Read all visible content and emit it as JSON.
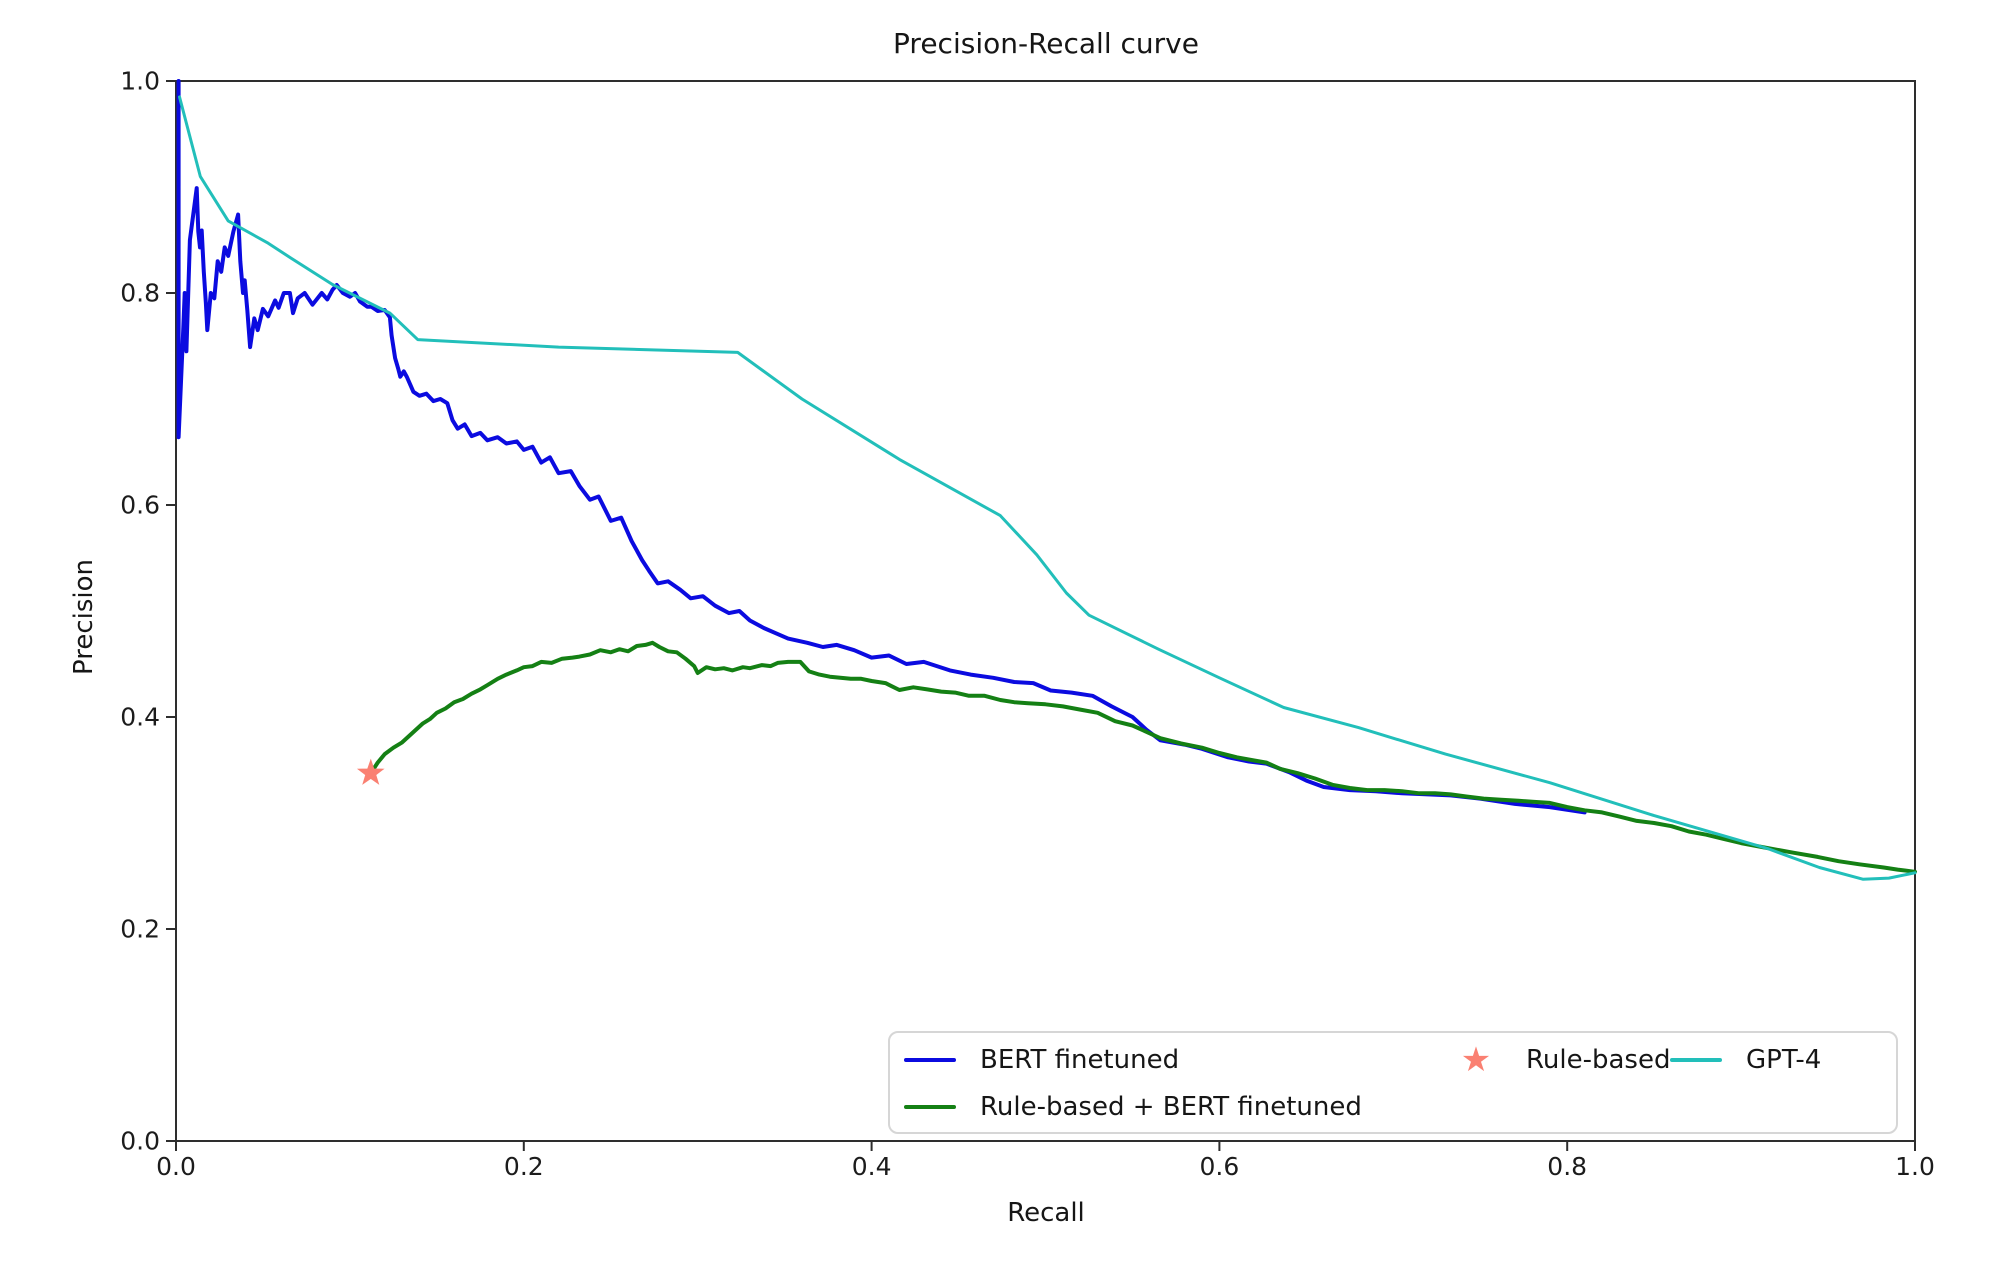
{
  "chart_data": {
    "type": "line",
    "title": "Precision-Recall curve",
    "xlabel": "Recall",
    "ylabel": "Precision",
    "xlim": [
      0.0,
      1.0
    ],
    "ylim": [
      0.0,
      1.0
    ],
    "x_ticks": [
      0.0,
      0.2,
      0.4,
      0.6,
      0.8,
      1.0
    ],
    "y_ticks": [
      0.0,
      0.2,
      0.4,
      0.6,
      0.8,
      1.0
    ],
    "grid": false,
    "legend_position": "lower right",
    "colors": {
      "bert": "#0b0be0",
      "rule_bert": "#148014",
      "rule": "#fa8072",
      "gpt4": "#22bfba",
      "spine": "#2e2e2e",
      "text": "#161616"
    },
    "series": [
      {
        "id": "bert-finetuned",
        "name": "BERT finetuned",
        "kind": "line",
        "color": "#0b0be0",
        "points": [
          [
            0.0015,
            1.0
          ],
          [
            0.0015,
            0.664
          ],
          [
            0.004,
            0.76
          ],
          [
            0.005,
            0.8
          ],
          [
            0.006,
            0.745
          ],
          [
            0.008,
            0.85
          ],
          [
            0.0119,
            0.899
          ],
          [
            0.0128,
            0.858
          ],
          [
            0.0138,
            0.843
          ],
          [
            0.0148,
            0.859
          ],
          [
            0.016,
            0.82
          ],
          [
            0.0172,
            0.79
          ],
          [
            0.018,
            0.765
          ],
          [
            0.02,
            0.8
          ],
          [
            0.022,
            0.795
          ],
          [
            0.024,
            0.83
          ],
          [
            0.026,
            0.82
          ],
          [
            0.028,
            0.843
          ],
          [
            0.03,
            0.835
          ],
          [
            0.033,
            0.858
          ],
          [
            0.0357,
            0.874
          ],
          [
            0.037,
            0.83
          ],
          [
            0.0385,
            0.8
          ],
          [
            0.0395,
            0.812
          ],
          [
            0.041,
            0.784
          ],
          [
            0.0426,
            0.749
          ],
          [
            0.045,
            0.776
          ],
          [
            0.047,
            0.765
          ],
          [
            0.05,
            0.785
          ],
          [
            0.053,
            0.778
          ],
          [
            0.057,
            0.793
          ],
          [
            0.059,
            0.786
          ],
          [
            0.062,
            0.8
          ],
          [
            0.0655,
            0.8
          ],
          [
            0.0673,
            0.781
          ],
          [
            0.07,
            0.795
          ],
          [
            0.074,
            0.8
          ],
          [
            0.0785,
            0.789
          ],
          [
            0.0838,
            0.8
          ],
          [
            0.087,
            0.794
          ],
          [
            0.09,
            0.803
          ],
          [
            0.0924,
            0.8075
          ],
          [
            0.096,
            0.8
          ],
          [
            0.1,
            0.7965
          ],
          [
            0.103,
            0.8
          ],
          [
            0.1058,
            0.792
          ],
          [
            0.11,
            0.787
          ],
          [
            0.1125,
            0.787
          ],
          [
            0.116,
            0.783
          ],
          [
            0.12,
            0.784
          ],
          [
            0.123,
            0.777
          ],
          [
            0.124,
            0.76
          ],
          [
            0.126,
            0.7386
          ],
          [
            0.1277,
            0.729
          ],
          [
            0.129,
            0.721
          ],
          [
            0.131,
            0.726
          ],
          [
            0.1328,
            0.7208
          ],
          [
            0.1365,
            0.7068
          ],
          [
            0.14,
            0.703
          ],
          [
            0.144,
            0.705
          ],
          [
            0.148,
            0.698
          ],
          [
            0.152,
            0.7
          ],
          [
            0.156,
            0.696
          ],
          [
            0.159,
            0.68
          ],
          [
            0.162,
            0.672
          ],
          [
            0.166,
            0.676
          ],
          [
            0.17,
            0.665
          ],
          [
            0.175,
            0.668
          ],
          [
            0.179,
            0.661
          ],
          [
            0.185,
            0.664
          ],
          [
            0.19,
            0.658
          ],
          [
            0.196,
            0.66
          ],
          [
            0.2,
            0.652
          ],
          [
            0.205,
            0.655
          ],
          [
            0.21,
            0.64
          ],
          [
            0.215,
            0.645
          ],
          [
            0.22,
            0.63
          ],
          [
            0.227,
            0.632
          ],
          [
            0.232,
            0.618
          ],
          [
            0.238,
            0.605
          ],
          [
            0.243,
            0.608
          ],
          [
            0.25,
            0.585
          ],
          [
            0.256,
            0.588
          ],
          [
            0.262,
            0.566
          ],
          [
            0.268,
            0.548
          ],
          [
            0.272,
            0.538
          ],
          [
            0.277,
            0.526
          ],
          [
            0.283,
            0.528
          ],
          [
            0.29,
            0.52
          ],
          [
            0.296,
            0.512
          ],
          [
            0.303,
            0.514
          ],
          [
            0.31,
            0.505
          ],
          [
            0.318,
            0.498
          ],
          [
            0.324,
            0.5
          ],
          [
            0.33,
            0.491
          ],
          [
            0.338,
            0.484
          ],
          [
            0.345,
            0.479
          ],
          [
            0.352,
            0.474
          ],
          [
            0.363,
            0.47
          ],
          [
            0.372,
            0.466
          ],
          [
            0.38,
            0.468
          ],
          [
            0.39,
            0.463
          ],
          [
            0.4,
            0.456
          ],
          [
            0.41,
            0.458
          ],
          [
            0.42,
            0.45
          ],
          [
            0.43,
            0.452
          ],
          [
            0.445,
            0.444
          ],
          [
            0.457,
            0.44
          ],
          [
            0.47,
            0.437
          ],
          [
            0.482,
            0.433
          ],
          [
            0.493,
            0.432
          ],
          [
            0.503,
            0.425
          ],
          [
            0.515,
            0.423
          ],
          [
            0.527,
            0.42
          ],
          [
            0.538,
            0.41
          ],
          [
            0.55,
            0.4
          ],
          [
            0.558,
            0.388
          ],
          [
            0.566,
            0.378
          ],
          [
            0.58,
            0.374
          ],
          [
            0.59,
            0.37
          ],
          [
            0.605,
            0.362
          ],
          [
            0.617,
            0.358
          ],
          [
            0.627,
            0.356
          ],
          [
            0.64,
            0.348
          ],
          [
            0.65,
            0.34
          ],
          [
            0.66,
            0.334
          ],
          [
            0.675,
            0.331
          ],
          [
            0.69,
            0.33
          ],
          [
            0.705,
            0.328
          ],
          [
            0.72,
            0.327
          ],
          [
            0.733,
            0.326
          ],
          [
            0.75,
            0.323
          ],
          [
            0.77,
            0.318
          ],
          [
            0.79,
            0.315
          ],
          [
            0.81,
            0.31
          ]
        ]
      },
      {
        "id": "rule-based-plus-bert-finetuned",
        "name": "Rule-based + BERT finetuned",
        "kind": "line",
        "color": "#148014",
        "points": [
          [
            0.112,
            0.347
          ],
          [
            0.116,
            0.357
          ],
          [
            0.12,
            0.365
          ],
          [
            0.125,
            0.371
          ],
          [
            0.13,
            0.376
          ],
          [
            0.136,
            0.385
          ],
          [
            0.142,
            0.394
          ],
          [
            0.146,
            0.398
          ],
          [
            0.15,
            0.404
          ],
          [
            0.155,
            0.408
          ],
          [
            0.16,
            0.414
          ],
          [
            0.165,
            0.417
          ],
          [
            0.17,
            0.422
          ],
          [
            0.175,
            0.426
          ],
          [
            0.179,
            0.43
          ],
          [
            0.185,
            0.436
          ],
          [
            0.19,
            0.44
          ],
          [
            0.196,
            0.444
          ],
          [
            0.2,
            0.447
          ],
          [
            0.205,
            0.448
          ],
          [
            0.21,
            0.452
          ],
          [
            0.216,
            0.451
          ],
          [
            0.222,
            0.455
          ],
          [
            0.228,
            0.456
          ],
          [
            0.232,
            0.457
          ],
          [
            0.238,
            0.459
          ],
          [
            0.244,
            0.463
          ],
          [
            0.25,
            0.461
          ],
          [
            0.255,
            0.464
          ],
          [
            0.26,
            0.462
          ],
          [
            0.265,
            0.467
          ],
          [
            0.27,
            0.468
          ],
          [
            0.274,
            0.47
          ],
          [
            0.278,
            0.466
          ],
          [
            0.283,
            0.462
          ],
          [
            0.288,
            0.461
          ],
          [
            0.293,
            0.455
          ],
          [
            0.298,
            0.448
          ],
          [
            0.3,
            0.4415
          ],
          [
            0.305,
            0.447
          ],
          [
            0.31,
            0.445
          ],
          [
            0.315,
            0.446
          ],
          [
            0.32,
            0.444
          ],
          [
            0.326,
            0.447
          ],
          [
            0.33,
            0.446
          ],
          [
            0.337,
            0.449
          ],
          [
            0.342,
            0.448
          ],
          [
            0.346,
            0.451
          ],
          [
            0.352,
            0.452
          ],
          [
            0.359,
            0.452
          ],
          [
            0.364,
            0.443
          ],
          [
            0.37,
            0.44
          ],
          [
            0.376,
            0.438
          ],
          [
            0.382,
            0.437
          ],
          [
            0.388,
            0.436
          ],
          [
            0.394,
            0.436
          ],
          [
            0.4,
            0.434
          ],
          [
            0.408,
            0.432
          ],
          [
            0.416,
            0.4255
          ],
          [
            0.424,
            0.428
          ],
          [
            0.432,
            0.426
          ],
          [
            0.44,
            0.424
          ],
          [
            0.448,
            0.423
          ],
          [
            0.456,
            0.42
          ],
          [
            0.465,
            0.42
          ],
          [
            0.474,
            0.416
          ],
          [
            0.482,
            0.414
          ],
          [
            0.49,
            0.413
          ],
          [
            0.5,
            0.412
          ],
          [
            0.51,
            0.41
          ],
          [
            0.52,
            0.407
          ],
          [
            0.53,
            0.404
          ],
          [
            0.54,
            0.396
          ],
          [
            0.55,
            0.392
          ],
          [
            0.558,
            0.386
          ],
          [
            0.566,
            0.38
          ],
          [
            0.578,
            0.375
          ],
          [
            0.59,
            0.371
          ],
          [
            0.6,
            0.366
          ],
          [
            0.61,
            0.362
          ],
          [
            0.62,
            0.359
          ],
          [
            0.627,
            0.357
          ],
          [
            0.635,
            0.351
          ],
          [
            0.645,
            0.347
          ],
          [
            0.655,
            0.342
          ],
          [
            0.665,
            0.336
          ],
          [
            0.675,
            0.333
          ],
          [
            0.685,
            0.331
          ],
          [
            0.695,
            0.331
          ],
          [
            0.705,
            0.33
          ],
          [
            0.715,
            0.328
          ],
          [
            0.724,
            0.328
          ],
          [
            0.733,
            0.327
          ],
          [
            0.742,
            0.325
          ],
          [
            0.752,
            0.323
          ],
          [
            0.762,
            0.322
          ],
          [
            0.772,
            0.321
          ],
          [
            0.78,
            0.32
          ],
          [
            0.79,
            0.319
          ],
          [
            0.8,
            0.315
          ],
          [
            0.81,
            0.312
          ],
          [
            0.82,
            0.31
          ],
          [
            0.83,
            0.306
          ],
          [
            0.84,
            0.302
          ],
          [
            0.85,
            0.3
          ],
          [
            0.86,
            0.297
          ],
          [
            0.87,
            0.292
          ],
          [
            0.88,
            0.289
          ],
          [
            0.89,
            0.285
          ],
          [
            0.9,
            0.281
          ],
          [
            0.915,
            0.2764
          ],
          [
            0.93,
            0.272
          ],
          [
            0.944,
            0.268
          ],
          [
            0.956,
            0.264
          ],
          [
            0.968,
            0.261
          ],
          [
            0.982,
            0.258
          ],
          [
            0.99,
            0.256
          ],
          [
            1.0,
            0.254
          ]
        ]
      },
      {
        "id": "gpt-4",
        "name": "GPT-4",
        "kind": "line",
        "color": "#22bfba",
        "points": [
          [
            0.002,
            0.985
          ],
          [
            0.014,
            0.91
          ],
          [
            0.03,
            0.868
          ],
          [
            0.053,
            0.847
          ],
          [
            0.066,
            0.833
          ],
          [
            0.09,
            0.808
          ],
          [
            0.123,
            0.781
          ],
          [
            0.139,
            0.756
          ],
          [
            0.22,
            0.749
          ],
          [
            0.323,
            0.744
          ],
          [
            0.36,
            0.7
          ],
          [
            0.416,
            0.643
          ],
          [
            0.474,
            0.59
          ],
          [
            0.495,
            0.553
          ],
          [
            0.512,
            0.517
          ],
          [
            0.525,
            0.496
          ],
          [
            0.565,
            0.464
          ],
          [
            0.6,
            0.437
          ],
          [
            0.637,
            0.409
          ],
          [
            0.68,
            0.39
          ],
          [
            0.73,
            0.365
          ],
          [
            0.79,
            0.338
          ],
          [
            0.85,
            0.307
          ],
          [
            0.915,
            0.276
          ],
          [
            0.945,
            0.258
          ],
          [
            0.97,
            0.247
          ],
          [
            0.985,
            0.248
          ],
          [
            1.0,
            0.253
          ]
        ]
      },
      {
        "id": "rule-based",
        "name": "Rule-based",
        "kind": "scatter",
        "marker": "star",
        "color": "#fa8072",
        "points": [
          [
            0.112,
            0.347
          ]
        ]
      }
    ],
    "legend": {
      "entries": [
        {
          "label": "BERT finetuned",
          "swatch": "line",
          "color": "#0b0be0"
        },
        {
          "label": "Rule-based + BERT finetuned",
          "swatch": "line",
          "color": "#148014"
        },
        {
          "label": "Rule-based",
          "swatch": "star",
          "color": "#fa8072"
        },
        {
          "label": "GPT-4",
          "swatch": "line",
          "color": "#22bfba"
        }
      ]
    }
  }
}
